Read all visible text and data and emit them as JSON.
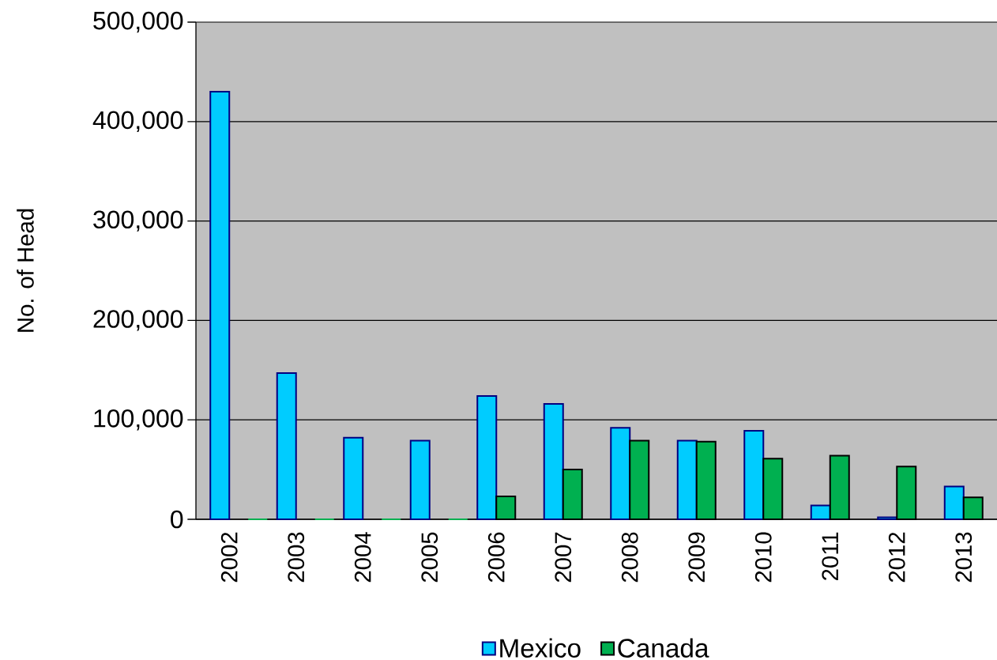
{
  "chart_data": {
    "type": "bar",
    "ylabel": "No. of Head",
    "categories": [
      "2002",
      "2003",
      "2004",
      "2005",
      "2006",
      "2007",
      "2008",
      "2009",
      "2010",
      "2011",
      "2012",
      "2013"
    ],
    "series": [
      {
        "name": "Mexico",
        "color": "#00ccff",
        "values": [
          430000,
          147000,
          82000,
          79000,
          124000,
          116000,
          92000,
          79000,
          89000,
          14000,
          2000,
          33000
        ]
      },
      {
        "name": "Canada",
        "color": "#00b050",
        "values": [
          0,
          0,
          0,
          0,
          23000,
          50000,
          79000,
          78000,
          61000,
          64000,
          53000,
          22000
        ]
      }
    ],
    "ylim": [
      0,
      500000
    ],
    "yticks": [
      0,
      {
        "value": 100000,
        "label": "100,000"
      },
      {
        "value": 200000,
        "label": "200,000"
      },
      {
        "value": 300000,
        "label": "300,000"
      },
      {
        "value": 400000,
        "label": "400,000"
      },
      {
        "value": 500000,
        "label": "500,000"
      }
    ],
    "grid": "y",
    "legend": "bottom"
  }
}
